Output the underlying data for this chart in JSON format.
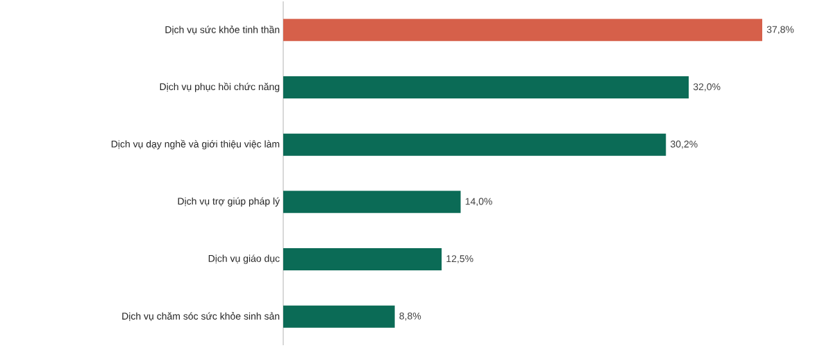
{
  "chart_data": {
    "type": "bar",
    "orientation": "horizontal",
    "categories": [
      "Dịch vụ sức khỏe tinh thần",
      "Dịch vụ phục hồi chức năng",
      "Dịch vụ dạy nghề và giới thiệu việc làm",
      "Dịch vụ trợ giúp pháp lý",
      "Dịch vụ giáo dục",
      "Dịch vụ chăm sóc sức khỏe sinh sản"
    ],
    "values": [
      37.8,
      32.0,
      30.2,
      14.0,
      12.5,
      8.8
    ],
    "value_labels": [
      "37,8%",
      "32,0%",
      "30,2%",
      "14,0%",
      "12,5%",
      "8,8%"
    ],
    "colors": [
      "#d6604a",
      "#0b6b56",
      "#0b6b56",
      "#0b6b56",
      "#0b6b56",
      "#0b6b56"
    ],
    "tick_labels": "y"
  }
}
